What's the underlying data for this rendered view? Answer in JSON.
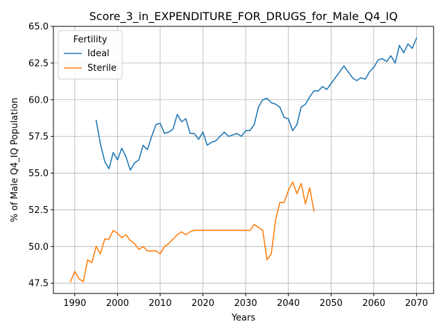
{
  "chart_data": {
    "type": "line",
    "title": "Score_3_in_EXPENDITURE_FOR_DRUGS_for_Male_Q4_IQ",
    "xlabel": "Years",
    "ylabel": "% of Male Q4_IQ Population",
    "xlim": [
      1985,
      2074
    ],
    "ylim": [
      46.8,
      65.0
    ],
    "xticks": [
      1990,
      2000,
      2010,
      2020,
      2030,
      2040,
      2050,
      2060,
      2070
    ],
    "yticks": [
      47.5,
      50.0,
      52.5,
      55.0,
      57.5,
      60.0,
      62.5,
      65.0
    ],
    "grid": true,
    "legend": {
      "title": "Fertility",
      "location": "top-left"
    },
    "series": [
      {
        "name": "Ideal",
        "color": "#1f77b4",
        "x": [
          1995,
          1996,
          1997,
          1998,
          1999,
          2000,
          2001,
          2002,
          2003,
          2004,
          2005,
          2006,
          2007,
          2008,
          2009,
          2010,
          2011,
          2012,
          2013,
          2014,
          2015,
          2016,
          2017,
          2018,
          2019,
          2020,
          2021,
          2022,
          2023,
          2024,
          2025,
          2026,
          2027,
          2028,
          2029,
          2030,
          2031,
          2032,
          2033,
          2034,
          2035,
          2036,
          2037,
          2038,
          2039,
          2040,
          2041,
          2042,
          2043,
          2044,
          2045,
          2046,
          2047,
          2048,
          2049,
          2050,
          2051,
          2052,
          2053,
          2054,
          2055,
          2056,
          2057,
          2058,
          2059,
          2060,
          2061,
          2062,
          2063,
          2064,
          2065,
          2066,
          2067,
          2068,
          2069,
          2070
        ],
        "values": [
          58.6,
          57.0,
          55.8,
          55.3,
          56.4,
          55.9,
          56.7,
          56.1,
          55.2,
          55.7,
          55.9,
          56.9,
          56.6,
          57.5,
          58.3,
          58.4,
          57.7,
          57.8,
          58.0,
          59.0,
          58.5,
          58.7,
          57.7,
          57.7,
          57.3,
          57.8,
          56.9,
          57.1,
          57.2,
          57.5,
          57.8,
          57.5,
          57.6,
          57.7,
          57.5,
          57.9,
          57.9,
          58.3,
          59.5,
          60.0,
          60.1,
          59.8,
          59.7,
          59.5,
          58.8,
          58.7,
          57.9,
          58.3,
          59.5,
          59.7,
          60.2,
          60.6,
          60.6,
          60.9,
          60.7,
          61.1,
          61.5,
          61.9,
          62.3,
          61.9,
          61.5,
          61.3,
          61.5,
          61.4,
          61.9,
          62.2,
          62.7,
          62.8,
          62.6,
          63.0,
          62.5,
          63.7,
          63.2,
          63.8,
          63.5,
          64.2
        ]
      },
      {
        "name": "Sterile",
        "color": "#ff7f0e",
        "x": [
          1989,
          1990,
          1991,
          1992,
          1993,
          1994,
          1995,
          1996,
          1997,
          1998,
          1999,
          2000,
          2001,
          2002,
          2003,
          2004,
          2005,
          2006,
          2007,
          2008,
          2009,
          2010,
          2011,
          2012,
          2013,
          2014,
          2015,
          2016,
          2017,
          2018,
          2019,
          2020,
          2021,
          2022,
          2023,
          2024,
          2025,
          2026,
          2027,
          2028,
          2029,
          2030,
          2031,
          2032,
          2033,
          2034,
          2035,
          2036,
          2037,
          2038,
          2039,
          2040,
          2041,
          2042,
          2043,
          2044,
          2045,
          2046
        ],
        "values": [
          47.6,
          48.3,
          47.8,
          47.6,
          49.1,
          48.9,
          50.0,
          49.5,
          50.5,
          50.5,
          51.1,
          50.9,
          50.6,
          50.8,
          50.4,
          50.2,
          49.8,
          50.0,
          49.7,
          49.7,
          49.7,
          49.5,
          50.0,
          50.2,
          50.5,
          50.8,
          51.0,
          50.8,
          51.0,
          51.1,
          51.1,
          51.1,
          51.1,
          51.1,
          51.1,
          51.1,
          51.1,
          51.1,
          51.1,
          51.1,
          51.1,
          51.1,
          51.1,
          51.5,
          51.3,
          51.1,
          49.1,
          49.5,
          51.8,
          53.0,
          53.0,
          53.8,
          54.4,
          53.6,
          54.3,
          52.9,
          54.0,
          52.4
        ]
      }
    ]
  }
}
